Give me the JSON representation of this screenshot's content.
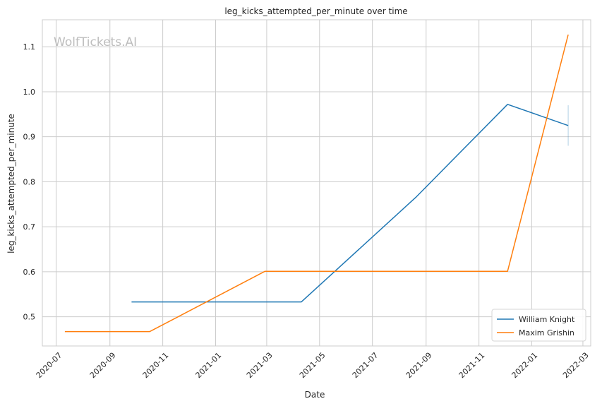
{
  "watermark": "WolfTickets.AI",
  "chart_data": {
    "type": "line",
    "title": "leg_kicks_attempted_per_minute over time",
    "xlabel": "Date",
    "ylabel": "leg_kicks_attempted_per_minute",
    "x_ticks": [
      "2020-07",
      "2020-09",
      "2020-11",
      "2021-01",
      "2021-03",
      "2021-05",
      "2021-07",
      "2021-09",
      "2021-11",
      "2022-01",
      "2022-03"
    ],
    "y_ticks": [
      "0.5",
      "0.6",
      "0.7",
      "0.8",
      "0.9",
      "1.0",
      "1.1"
    ],
    "xlim": [
      "2020-06-15",
      "2022-03-10"
    ],
    "ylim": [
      0.435,
      1.16
    ],
    "grid": true,
    "legend_position": "bottom-right",
    "series": [
      {
        "name": "William Knight",
        "color": "#1f77b4",
        "x": [
          "2020-09-26",
          "2021-04-10",
          "2021-08-21",
          "2021-12-04",
          "2022-02-12"
        ],
        "y": [
          0.533,
          0.533,
          0.767,
          0.972,
          0.925
        ],
        "error_bar": {
          "x": "2022-02-12",
          "low": 0.88,
          "high": 0.97
        }
      },
      {
        "name": "Maxim Grishin",
        "color": "#ff7f0e",
        "x": [
          "2020-07-11",
          "2020-10-17",
          "2021-02-27",
          "2021-12-04",
          "2022-02-12"
        ],
        "y": [
          0.467,
          0.467,
          0.601,
          0.601,
          1.127
        ]
      }
    ]
  }
}
